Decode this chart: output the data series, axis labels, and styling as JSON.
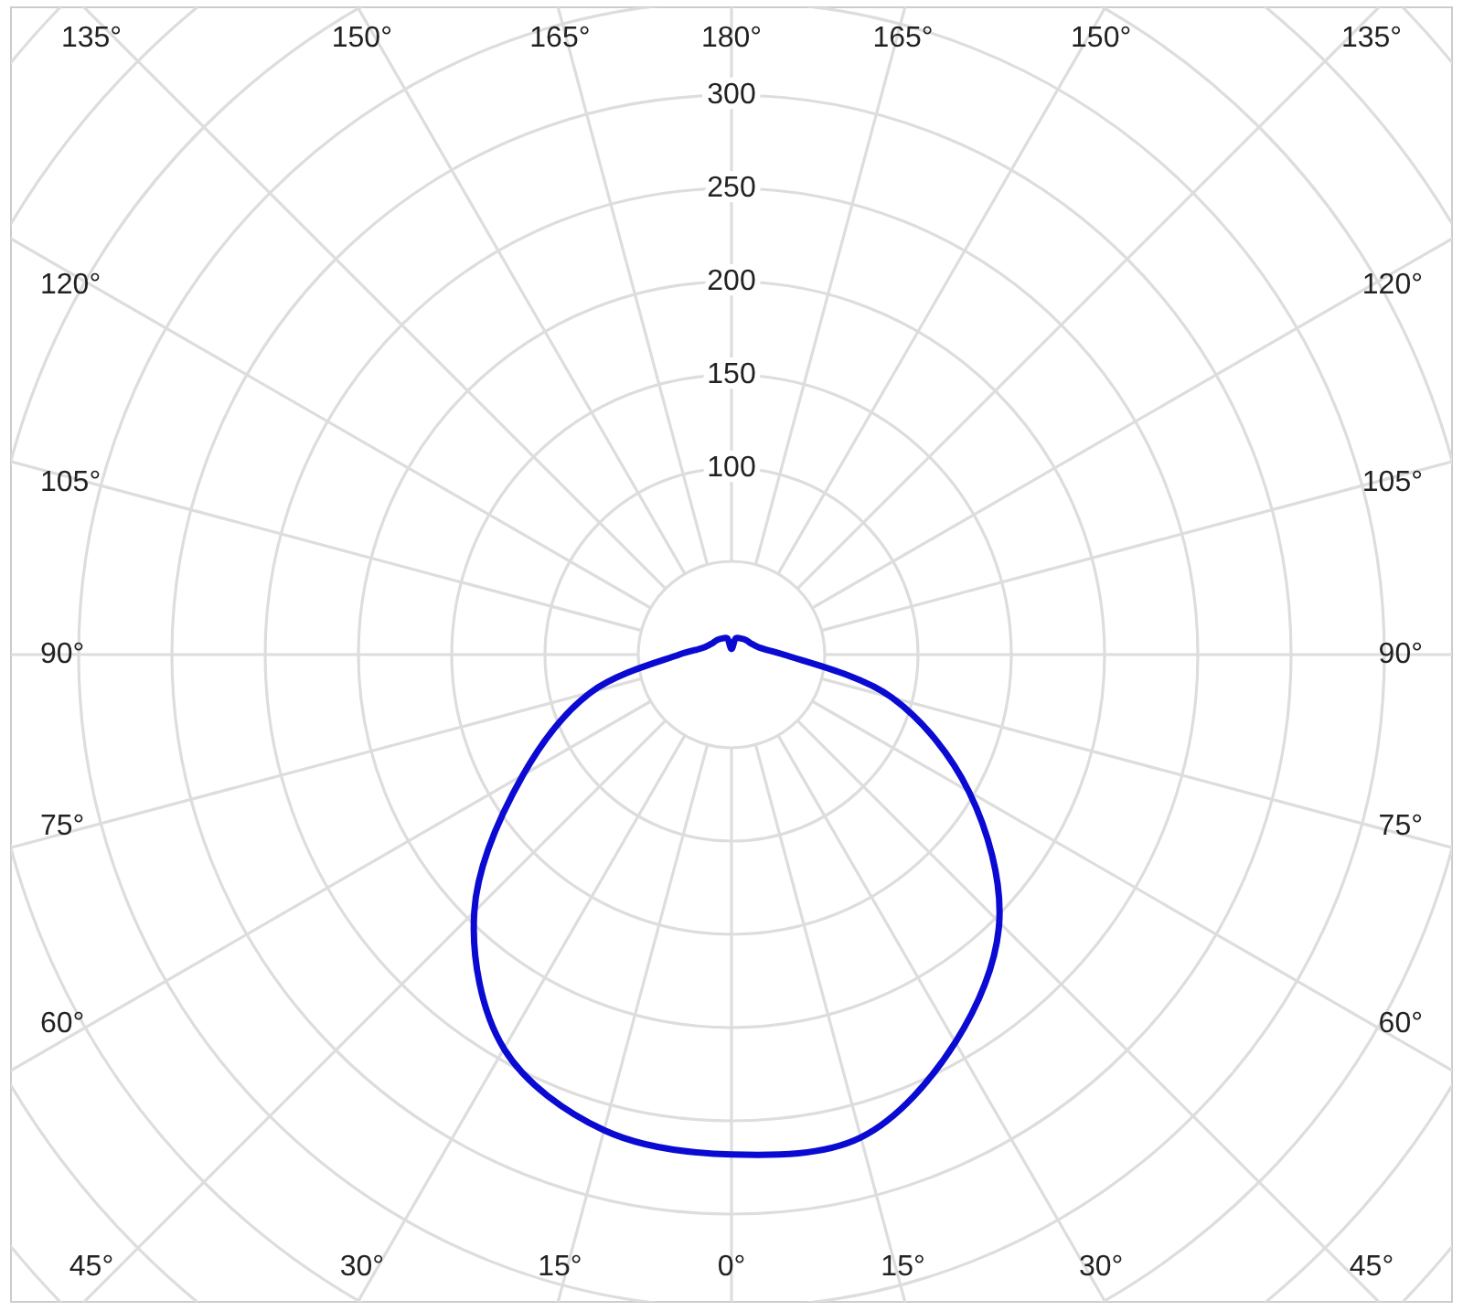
{
  "chart_data": {
    "type": "radar",
    "categories": [
      "180°",
      "165°",
      "150°",
      "135°",
      "120°",
      "105°",
      "90°",
      "75°",
      "60°",
      "45°",
      "30°",
      "15°",
      "0°",
      "15°",
      "30°",
      "45°",
      "60°",
      "75°",
      "90°",
      "105°",
      "120°",
      "135°",
      "150°",
      "165°"
    ],
    "series": [
      {
        "color": "#0a0ad2",
        "values": [
          3,
          9,
          10,
          11,
          12,
          15,
          28,
          89,
          147,
          203,
          240,
          268,
          268,
          264,
          244,
          195,
          129,
          78,
          28,
          15,
          12,
          11,
          10,
          9
        ]
      }
    ],
    "ylim": [
      0,
      500
    ],
    "yticks": [
      100,
      150,
      200,
      250,
      300
    ],
    "grid": true
  }
}
